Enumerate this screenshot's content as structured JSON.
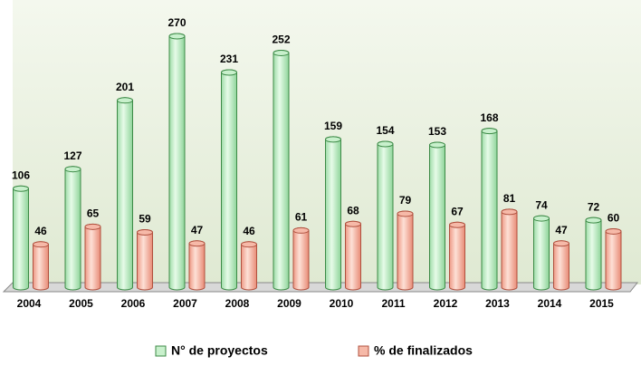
{
  "chart_data": {
    "type": "bar",
    "categories": [
      "2004",
      "2005",
      "2006",
      "2007",
      "2008",
      "2009",
      "2010",
      "2011",
      "2012",
      "2013",
      "2014",
      "2015"
    ],
    "series": [
      {
        "name": "N° de proyectos",
        "color": "#c8f0cc",
        "values": [
          106,
          127,
          201,
          270,
          231,
          252,
          159,
          154,
          153,
          168,
          74,
          72
        ]
      },
      {
        "name": "% de finalizados",
        "color": "#f6b9a8",
        "values": [
          46,
          65,
          59,
          47,
          46,
          61,
          68,
          79,
          67,
          81,
          47,
          60
        ]
      }
    ],
    "legend": "bottom"
  }
}
